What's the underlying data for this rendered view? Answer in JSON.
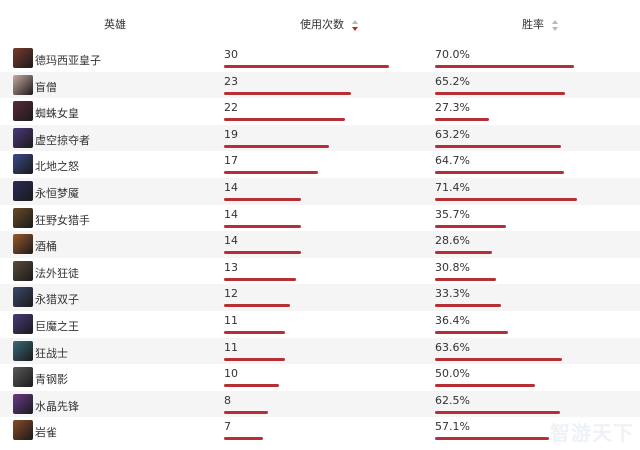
{
  "header": {
    "hero": "英雄",
    "uses": "使用次数",
    "winrate": "胜率"
  },
  "colors": {
    "bar": "#b72f36",
    "sort_active": "#c1272d",
    "row_alt": "#f5f5f5"
  },
  "max_uses": 30,
  "rows": [
    {
      "name": "德玛西亚皇子",
      "uses": "30",
      "winrate": "70.0%",
      "uses_value": 30,
      "win_value": 70.0,
      "avatar_color": "#7a3b2e",
      "icon": "hero-portrait-icon"
    },
    {
      "name": "盲僧",
      "uses": "23",
      "winrate": "65.2%",
      "uses_value": 23,
      "win_value": 65.2,
      "avatar_color": "#c9a9a0",
      "icon": "hero-portrait-icon"
    },
    {
      "name": "蜘蛛女皇",
      "uses": "22",
      "winrate": "27.3%",
      "uses_value": 22,
      "win_value": 27.3,
      "avatar_color": "#5a2a3a",
      "icon": "hero-portrait-icon"
    },
    {
      "name": "虚空掠夺者",
      "uses": "19",
      "winrate": "63.2%",
      "uses_value": 19,
      "win_value": 63.2,
      "avatar_color": "#4b3a7a",
      "icon": "hero-portrait-icon"
    },
    {
      "name": "北地之怒",
      "uses": "17",
      "winrate": "64.7%",
      "uses_value": 17,
      "win_value": 64.7,
      "avatar_color": "#3a4a8a",
      "icon": "hero-portrait-icon"
    },
    {
      "name": "永恒梦魇",
      "uses": "14",
      "winrate": "71.4%",
      "uses_value": 14,
      "win_value": 71.4,
      "avatar_color": "#2a2a5a",
      "icon": "hero-portrait-icon"
    },
    {
      "name": "狂野女猎手",
      "uses": "14",
      "winrate": "35.7%",
      "uses_value": 14,
      "win_value": 35.7,
      "avatar_color": "#6a4a2a",
      "icon": "hero-portrait-icon"
    },
    {
      "name": "酒桶",
      "uses": "14",
      "winrate": "28.6%",
      "uses_value": 14,
      "win_value": 28.6,
      "avatar_color": "#9a5a2a",
      "icon": "hero-portrait-icon"
    },
    {
      "name": "法外狂徒",
      "uses": "13",
      "winrate": "30.8%",
      "uses_value": 13,
      "win_value": 30.8,
      "avatar_color": "#5a4a3a",
      "icon": "hero-portrait-icon"
    },
    {
      "name": "永猎双子",
      "uses": "12",
      "winrate": "33.3%",
      "uses_value": 12,
      "win_value": 33.3,
      "avatar_color": "#3a4a6a",
      "icon": "hero-portrait-icon"
    },
    {
      "name": "巨魔之王",
      "uses": "11",
      "winrate": "36.4%",
      "uses_value": 11,
      "win_value": 36.4,
      "avatar_color": "#4a3a7a",
      "icon": "hero-portrait-icon"
    },
    {
      "name": "狂战士",
      "uses": "11",
      "winrate": "63.6%",
      "uses_value": 11,
      "win_value": 63.6,
      "avatar_color": "#3a6a7a",
      "icon": "hero-portrait-icon"
    },
    {
      "name": "青钢影",
      "uses": "10",
      "winrate": "50.0%",
      "uses_value": 10,
      "win_value": 50.0,
      "avatar_color": "#5a5a5a",
      "icon": "hero-portrait-icon"
    },
    {
      "name": "水晶先锋",
      "uses": "8",
      "winrate": "62.5%",
      "uses_value": 8,
      "win_value": 62.5,
      "avatar_color": "#6a3a8a",
      "icon": "hero-portrait-icon"
    },
    {
      "name": "岩雀",
      "uses": "7",
      "winrate": "57.1%",
      "uses_value": 7,
      "win_value": 57.1,
      "avatar_color": "#8a4a2a",
      "icon": "hero-portrait-icon"
    }
  ],
  "watermark": "智游天下"
}
